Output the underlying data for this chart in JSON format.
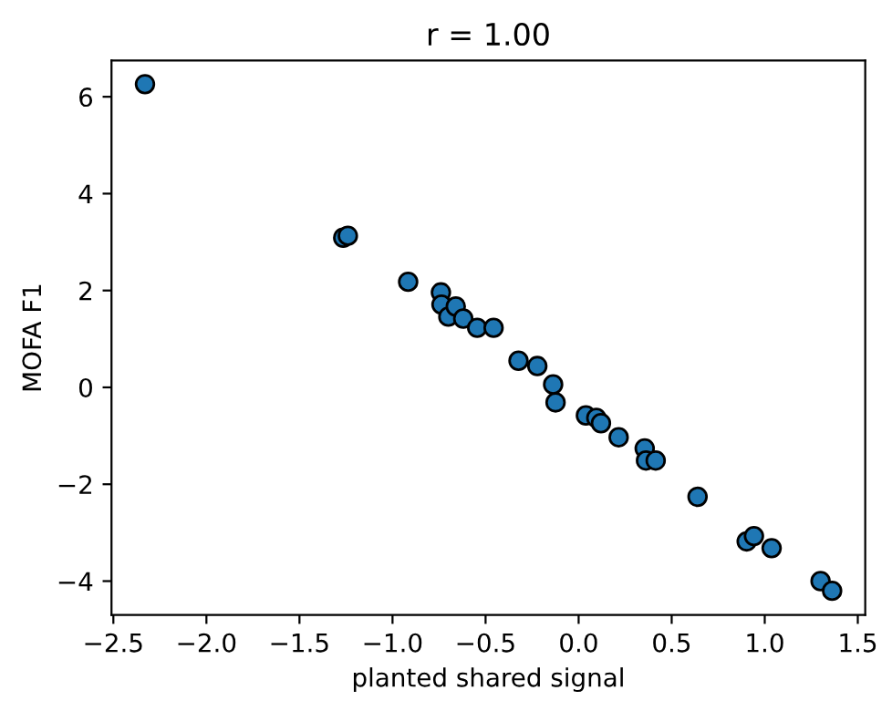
{
  "chart_data": {
    "type": "scatter",
    "title": "r = 1.00",
    "xlabel": "planted shared signal",
    "ylabel": "MOFA F1",
    "x": [
      -2.33,
      -1.265,
      -1.24,
      -0.916,
      -0.74,
      -0.737,
      -0.7,
      -0.66,
      -0.62,
      -0.545,
      -0.457,
      -0.323,
      -0.222,
      -0.137,
      -0.124,
      0.039,
      0.095,
      0.12,
      0.215,
      0.355,
      0.362,
      0.414,
      0.639,
      0.903,
      0.942,
      1.037,
      1.3,
      1.362
    ],
    "series": [
      {
        "color": "#1f77b4",
        "values": [
          6.26,
          3.09,
          3.13,
          2.18,
          1.96,
          1.71,
          1.46,
          1.67,
          1.42,
          1.23,
          1.23,
          0.55,
          0.44,
          0.06,
          -0.31,
          -0.58,
          -0.63,
          -0.74,
          -1.03,
          -1.26,
          -1.51,
          -1.51,
          -2.26,
          -3.18,
          -3.07,
          -3.32,
          -4.0,
          -4.2
        ]
      }
    ],
    "xlim": [
      -2.51,
      1.54
    ],
    "ylim": [
      -4.7,
      6.75
    ],
    "xticks": [
      {
        "value": -2.5,
        "label": "−2.5"
      },
      {
        "value": -2.0,
        "label": "−2.0"
      },
      {
        "value": -1.5,
        "label": "−1.5"
      },
      {
        "value": -1.0,
        "label": "−1.0"
      },
      {
        "value": -0.5,
        "label": "−0.5"
      },
      {
        "value": 0.0,
        "label": "0.0"
      },
      {
        "value": 0.5,
        "label": "0.5"
      },
      {
        "value": 1.0,
        "label": "1.0"
      },
      {
        "value": 1.5,
        "label": "1.5"
      }
    ],
    "yticks": [
      {
        "value": -4,
        "label": "−4"
      },
      {
        "value": -2,
        "label": "−2"
      },
      0,
      2,
      4,
      6
    ],
    "grid": false,
    "marker": "circle"
  }
}
